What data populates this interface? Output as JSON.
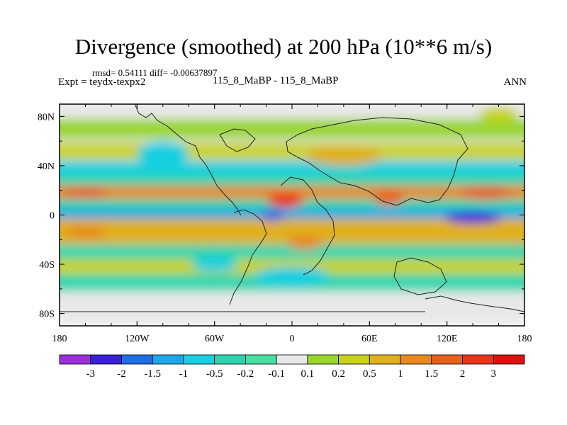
{
  "header": {
    "title": "Divergence (smoothed) at 200 hPa (10**6 m/s)",
    "stats": "rmsd= 0.54111 diff= -0.00637897",
    "experiment": "Expt = teydx-texpx2",
    "case": "115_8_MaBP - 115_8_MaBP",
    "season": "ANN"
  },
  "chart_data": {
    "type": "heatmap",
    "title": "Divergence (smoothed) at 200 hPa (10**6 m/s)",
    "xlabel": "",
    "ylabel": "",
    "xlim": [
      -180,
      180
    ],
    "ylim": [
      -90,
      90
    ],
    "x_ticks": [
      {
        "value": -180,
        "label": "180"
      },
      {
        "value": -120,
        "label": "120W"
      },
      {
        "value": -60,
        "label": "60W"
      },
      {
        "value": 0,
        "label": "0"
      },
      {
        "value": 60,
        "label": "60E"
      },
      {
        "value": 120,
        "label": "120E"
      },
      {
        "value": 180,
        "label": "180"
      }
    ],
    "y_ticks": [
      {
        "value": 80,
        "label": "80N"
      },
      {
        "value": 40,
        "label": "40N"
      },
      {
        "value": 0,
        "label": "0"
      },
      {
        "value": -40,
        "label": "40S"
      },
      {
        "value": -80,
        "label": "80S"
      }
    ],
    "colorbar": {
      "labels": [
        "-3",
        "-2",
        "-1.5",
        "-1",
        "-0.5",
        "-0.2",
        "-0.1",
        "0.1",
        "0.2",
        "0.5",
        "1",
        "1.5",
        "2",
        "3"
      ],
      "levels": [
        -3,
        -2,
        -1.5,
        -1,
        -0.5,
        -0.2,
        -0.1,
        0.1,
        0.2,
        0.5,
        1,
        1.5,
        2,
        3
      ],
      "colors": [
        "#9b2fe0",
        "#3a20d8",
        "#1f6ee6",
        "#1aa8e8",
        "#19cfe0",
        "#2ad6b0",
        "#46e0a0",
        "#e8e8e8",
        "#9ad62a",
        "#c9d21a",
        "#e0b01a",
        "#e88a1a",
        "#e8601a",
        "#e8341a",
        "#e01010"
      ]
    },
    "bands": [
      {
        "lat": 88,
        "width": 6,
        "value": -0.05
      },
      {
        "lat": 70,
        "width": 8,
        "value": 0.15
      },
      {
        "lat": 52,
        "width": 7,
        "value": 0.3
      },
      {
        "lat": 38,
        "width": 6,
        "value": -0.6
      },
      {
        "lat": 28,
        "width": 5,
        "value": -0.3
      },
      {
        "lat": 18,
        "width": 6,
        "value": 1.1
      },
      {
        "lat": 8,
        "width": 5,
        "value": -0.4
      },
      {
        "lat": 0,
        "width": 5,
        "value": -1.2
      },
      {
        "lat": -8,
        "width": 5,
        "value": 0.6
      },
      {
        "lat": -18,
        "width": 6,
        "value": 0.9
      },
      {
        "lat": -30,
        "width": 6,
        "value": -0.5
      },
      {
        "lat": -42,
        "width": 6,
        "value": 0.2
      },
      {
        "lat": -55,
        "width": 7,
        "value": -0.3
      },
      {
        "lat": -72,
        "width": 8,
        "value": -0.05
      }
    ],
    "features": [
      {
        "lon": -5,
        "lat": 12,
        "rx": 14,
        "ry": 6,
        "value": 2.4
      },
      {
        "lon": 140,
        "lat": -2,
        "rx": 22,
        "ry": 5,
        "value": -2.3
      },
      {
        "lon": -15,
        "lat": 0,
        "rx": 10,
        "ry": 5,
        "value": -2.0
      },
      {
        "lon": 75,
        "lat": 14,
        "rx": 12,
        "ry": 6,
        "value": 1.6
      },
      {
        "lon": 150,
        "lat": 18,
        "rx": 20,
        "ry": 6,
        "value": 1.6
      },
      {
        "lon": -160,
        "lat": 18,
        "rx": 18,
        "ry": 5,
        "value": 1.6
      },
      {
        "lon": -160,
        "lat": -14,
        "rx": 16,
        "ry": 5,
        "value": 1.4
      },
      {
        "lon": 40,
        "lat": 48,
        "rx": 30,
        "ry": 8,
        "value": 0.6
      },
      {
        "lon": -100,
        "lat": 50,
        "rx": 20,
        "ry": 10,
        "value": -0.7
      },
      {
        "lon": -60,
        "lat": -40,
        "rx": 18,
        "ry": 6,
        "value": -0.8
      },
      {
        "lon": 0,
        "lat": -50,
        "rx": 30,
        "ry": 8,
        "value": -0.7
      },
      {
        "lon": 160,
        "lat": 82,
        "rx": 15,
        "ry": 6,
        "value": 0.2
      },
      {
        "lon": 10,
        "lat": -22,
        "rx": 14,
        "ry": 6,
        "value": 1.2
      }
    ]
  }
}
